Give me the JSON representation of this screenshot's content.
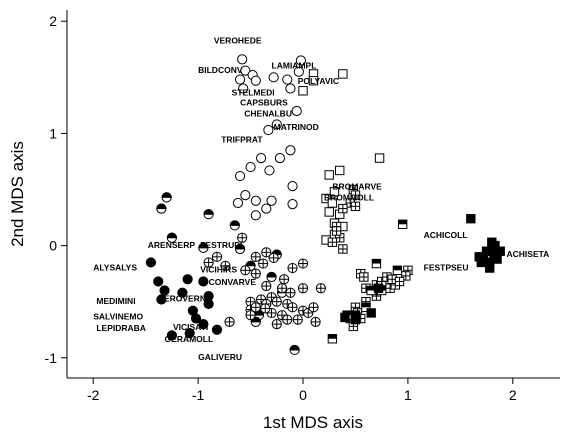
{
  "chart_data": {
    "type": "scatter",
    "title": "",
    "xlabel": "1st MDS axis",
    "ylabel": "2nd MDS axis",
    "xlim": [
      -2.25,
      2.45
    ],
    "ylim": [
      -1.18,
      2.1
    ],
    "xticks": [
      -2,
      -1,
      0,
      1,
      2
    ],
    "yticks": [
      -1,
      0,
      1,
      2
    ],
    "grid": false,
    "legend": "none",
    "marker_styles": {
      "open-circle": "open circle",
      "half-circle": "half-filled circle",
      "filled-circle": "filled circle",
      "cross-circle": "circle with cross",
      "open-square": "open square",
      "cross-square": "square with cross",
      "half-square": "half-filled square",
      "filled-square": "filled square"
    },
    "series": [
      {
        "marker": "open-circle",
        "points": [
          [
            -0.58,
            1.66
          ],
          [
            -0.55,
            1.56
          ],
          [
            -0.48,
            1.52
          ],
          [
            -0.6,
            1.48
          ],
          [
            -0.57,
            1.4
          ],
          [
            -0.45,
            1.47
          ],
          [
            -0.28,
            1.5
          ],
          [
            -0.15,
            1.48
          ],
          [
            -0.12,
            1.4
          ],
          [
            -0.04,
            1.55
          ],
          [
            -0.02,
            1.65
          ],
          [
            -0.06,
            1.2
          ],
          [
            -0.25,
            1.08
          ],
          [
            -0.33,
            1.03
          ],
          [
            -0.12,
            0.85
          ],
          [
            -0.22,
            0.78
          ],
          [
            -0.4,
            0.78
          ],
          [
            -0.5,
            0.7
          ],
          [
            -0.32,
            0.67
          ],
          [
            -0.6,
            0.62
          ],
          [
            -0.55,
            0.45
          ],
          [
            -0.45,
            0.4
          ],
          [
            -0.62,
            0.38
          ],
          [
            -0.1,
            0.53
          ],
          [
            -0.1,
            0.37
          ],
          [
            -0.3,
            0.4
          ],
          [
            -0.35,
            0.33
          ],
          [
            -0.45,
            0.27
          ]
        ]
      },
      {
        "marker": "half-circle",
        "points": [
          [
            -1.3,
            0.43
          ],
          [
            -1.35,
            0.33
          ],
          [
            -0.9,
            0.28
          ],
          [
            -0.65,
            0.18
          ],
          [
            -1.25,
            0.07
          ],
          [
            -0.95,
            -0.02
          ],
          [
            -0.6,
            -0.03
          ],
          [
            -0.25,
            -0.08
          ],
          [
            -0.5,
            -0.18
          ],
          [
            -0.3,
            -0.28
          ],
          [
            -0.2,
            -0.42
          ],
          [
            -0.42,
            -0.62
          ],
          [
            -0.45,
            -0.68
          ],
          [
            -0.08,
            -0.93
          ]
        ]
      },
      {
        "marker": "filled-circle",
        "points": [
          [
            -1.45,
            -0.15
          ],
          [
            -1.38,
            -0.32
          ],
          [
            -1.32,
            -0.4
          ],
          [
            -1.35,
            -0.48
          ],
          [
            -1.1,
            -0.3
          ],
          [
            -1.15,
            -0.42
          ],
          [
            -0.95,
            -0.32
          ],
          [
            -0.9,
            -0.45
          ],
          [
            -1.05,
            -0.58
          ],
          [
            -0.9,
            -0.52
          ],
          [
            -1.02,
            -0.65
          ],
          [
            -0.95,
            -0.7
          ],
          [
            -1.08,
            -0.78
          ],
          [
            -0.82,
            -0.75
          ],
          [
            -1.25,
            -0.8
          ]
        ]
      },
      {
        "marker": "cross-circle",
        "points": [
          [
            -0.58,
            0.07
          ],
          [
            -0.82,
            -0.1
          ],
          [
            -0.9,
            -0.15
          ],
          [
            -0.74,
            -0.18
          ],
          [
            -0.35,
            -0.06
          ],
          [
            -0.45,
            -0.1
          ],
          [
            -0.38,
            -0.16
          ],
          [
            -0.28,
            -0.11
          ],
          [
            -0.55,
            -0.22
          ],
          [
            -0.45,
            -0.25
          ],
          [
            -0.1,
            -0.2
          ],
          [
            0.0,
            -0.16
          ],
          [
            -0.18,
            -0.3
          ],
          [
            -0.35,
            -0.36
          ],
          [
            -0.2,
            -0.38
          ],
          [
            -0.12,
            -0.42
          ],
          [
            0.0,
            -0.38
          ],
          [
            -0.5,
            -0.5
          ],
          [
            -0.4,
            -0.48
          ],
          [
            -0.3,
            -0.46
          ],
          [
            -0.35,
            -0.52
          ],
          [
            -0.25,
            -0.5
          ],
          [
            -0.15,
            -0.52
          ],
          [
            -0.1,
            -0.55
          ],
          [
            0.0,
            -0.58
          ],
          [
            -0.05,
            -0.66
          ],
          [
            -0.2,
            -0.62
          ],
          [
            -0.3,
            -0.6
          ],
          [
            -0.36,
            -0.56
          ],
          [
            -0.5,
            -0.57
          ],
          [
            -0.15,
            -0.66
          ],
          [
            0.05,
            -0.6
          ],
          [
            0.1,
            -0.55
          ],
          [
            -0.25,
            -0.7
          ],
          [
            -0.45,
            -0.55
          ],
          [
            -0.5,
            -0.62
          ],
          [
            0.12,
            -0.68
          ],
          [
            -0.7,
            -0.68
          ],
          [
            0.17,
            -0.38
          ]
        ]
      },
      {
        "marker": "open-square",
        "points": [
          [
            0.1,
            1.53
          ],
          [
            0.1,
            1.47
          ],
          [
            0.0,
            1.38
          ],
          [
            0.38,
            1.53
          ],
          [
            0.73,
            0.78
          ],
          [
            0.25,
            0.63
          ],
          [
            0.35,
            0.67
          ],
          [
            0.3,
            0.48
          ],
          [
            0.22,
            0.42
          ],
          [
            0.28,
            0.38
          ],
          [
            0.25,
            0.3
          ],
          [
            0.35,
            0.28
          ],
          [
            0.3,
            0.2
          ],
          [
            0.38,
            0.17
          ],
          [
            0.3,
            0.1
          ],
          [
            0.22,
            0.05
          ]
        ]
      },
      {
        "marker": "cross-square",
        "points": [
          [
            0.48,
            0.5
          ],
          [
            0.5,
            0.45
          ],
          [
            0.45,
            0.38
          ],
          [
            0.5,
            0.35
          ],
          [
            0.38,
            0.33
          ],
          [
            0.32,
            0.17
          ],
          [
            0.35,
            0.07
          ],
          [
            0.38,
            -0.03
          ],
          [
            0.28,
            0.03
          ],
          [
            0.32,
            0.13
          ],
          [
            0.55,
            -0.25
          ],
          [
            0.58,
            -0.28
          ],
          [
            0.6,
            -0.38
          ],
          [
            0.7,
            -0.35
          ],
          [
            0.75,
            -0.32
          ],
          [
            0.8,
            -0.28
          ],
          [
            0.83,
            -0.38
          ],
          [
            0.88,
            -0.35
          ],
          [
            0.85,
            -0.3
          ],
          [
            1.0,
            -0.22
          ],
          [
            0.98,
            -0.27
          ],
          [
            0.92,
            -0.32
          ],
          [
            0.7,
            -0.45
          ],
          [
            0.6,
            -0.5
          ],
          [
            0.5,
            -0.55
          ],
          [
            0.52,
            -0.6
          ],
          [
            0.55,
            -0.65
          ],
          [
            0.48,
            -0.72
          ],
          [
            0.45,
            -0.65
          ]
        ]
      },
      {
        "marker": "half-square",
        "points": [
          [
            0.95,
            0.19
          ],
          [
            0.7,
            -0.16
          ],
          [
            0.9,
            -0.22
          ],
          [
            0.65,
            -0.4
          ],
          [
            0.75,
            -0.4
          ],
          [
            0.28,
            -0.83
          ],
          [
            0.6,
            -0.55
          ],
          [
            0.42,
            -0.62
          ],
          [
            0.5,
            -0.62
          ]
        ]
      },
      {
        "marker": "filled-square",
        "points": [
          [
            1.6,
            0.24
          ],
          [
            1.8,
            0.03
          ],
          [
            1.75,
            -0.05
          ],
          [
            1.72,
            -0.1
          ],
          [
            1.82,
            -0.08
          ],
          [
            1.78,
            -0.15
          ],
          [
            1.7,
            -0.15
          ],
          [
            1.85,
            -0.12
          ],
          [
            1.78,
            -0.2
          ],
          [
            1.88,
            -0.05
          ],
          [
            1.83,
            0.0
          ],
          [
            1.68,
            -0.1
          ],
          [
            0.72,
            -0.38
          ],
          [
            0.65,
            -0.6
          ],
          [
            0.5,
            -0.66
          ],
          [
            0.4,
            -0.64
          ]
        ]
      }
    ],
    "annotations": [
      {
        "text": "VEROHEDE",
        "x": -0.85,
        "y": 1.8
      },
      {
        "text": "LAMIAMPL",
        "x": -0.3,
        "y": 1.58
      },
      {
        "text": "BILDCONV",
        "x": -1.0,
        "y": 1.54
      },
      {
        "text": "POLYAVIC",
        "x": -0.05,
        "y": 1.44
      },
      {
        "text": "STELMEDI",
        "x": -0.68,
        "y": 1.34
      },
      {
        "text": "CAPSBURS",
        "x": -0.6,
        "y": 1.25
      },
      {
        "text": "CHENALBU",
        "x": -0.56,
        "y": 1.15
      },
      {
        "text": "MATRINOD",
        "x": -0.28,
        "y": 1.03
      },
      {
        "text": "TRIFPRAT",
        "x": -0.78,
        "y": 0.92
      },
      {
        "text": "BROMARVE",
        "x": 0.28,
        "y": 0.5
      },
      {
        "text": "BROMMOLL",
        "x": 0.2,
        "y": 0.4
      },
      {
        "text": "ACHICOLL",
        "x": 1.15,
        "y": 0.07
      },
      {
        "text": "ACHISETA",
        "x": 1.94,
        "y": -0.1
      },
      {
        "text": "FESTPSEU",
        "x": 1.15,
        "y": -0.22
      },
      {
        "text": "ARENSERP",
        "x": -1.48,
        "y": -0.02
      },
      {
        "text": "FESTRUPI",
        "x": -0.98,
        "y": -0.02
      },
      {
        "text": "ALYSALYS",
        "x": -2.0,
        "y": -0.22
      },
      {
        "text": "VICIHIRS",
        "x": -0.98,
        "y": -0.24
      },
      {
        "text": "CONVARVE",
        "x": -0.9,
        "y": -0.35
      },
      {
        "text": "MEDIMINI",
        "x": -1.97,
        "y": -0.52
      },
      {
        "text": "VEROVERN",
        "x": -1.38,
        "y": -0.5
      },
      {
        "text": "SALVINEMO",
        "x": -2.0,
        "y": -0.66
      },
      {
        "text": "LEPIDRABA",
        "x": -1.97,
        "y": -0.76
      },
      {
        "text": "VICISATI",
        "x": -1.24,
        "y": -0.75
      },
      {
        "text": "GERAMOLL",
        "x": -1.32,
        "y": -0.86
      },
      {
        "text": "GALIVERU",
        "x": -1.0,
        "y": -1.02
      }
    ]
  }
}
